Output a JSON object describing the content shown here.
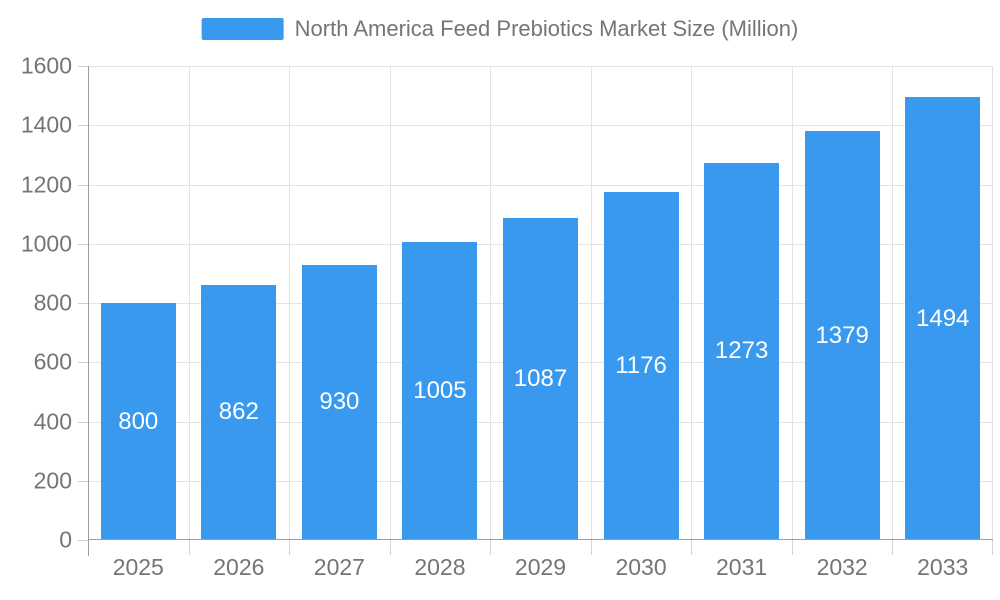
{
  "legend": {
    "label": "North America Feed Prebiotics Market Size (Million)"
  },
  "colors": {
    "bar": "#3899EE",
    "grid": "#E3E3E3",
    "axis_line": "#9E9E9E",
    "tick": "#CFCFCF",
    "axis_text": "#757575",
    "value_label_text": "#FFFFFF",
    "background": "#FFFFFF"
  },
  "chart_data": {
    "type": "bar",
    "title": "North America Feed Prebiotics Market Size (Million)",
    "categories": [
      "2025",
      "2026",
      "2027",
      "2028",
      "2029",
      "2030",
      "2031",
      "2032",
      "2033"
    ],
    "values": [
      800,
      862,
      930,
      1005,
      1087,
      1176,
      1273,
      1379,
      1494
    ],
    "series": [
      {
        "name": "North America Feed Prebiotics Market Size (Million)",
        "values": [
          800,
          862,
          930,
          1005,
          1087,
          1176,
          1273,
          1379,
          1494
        ]
      }
    ],
    "xlabel": "",
    "ylabel": "",
    "ylim": [
      0,
      1600
    ],
    "ytick_step": 200,
    "yticks": [
      0,
      200,
      400,
      600,
      800,
      1000,
      1200,
      1400,
      1600
    ],
    "grid": true,
    "legend_position": "top-center",
    "value_labels": "inside-middle-center"
  }
}
